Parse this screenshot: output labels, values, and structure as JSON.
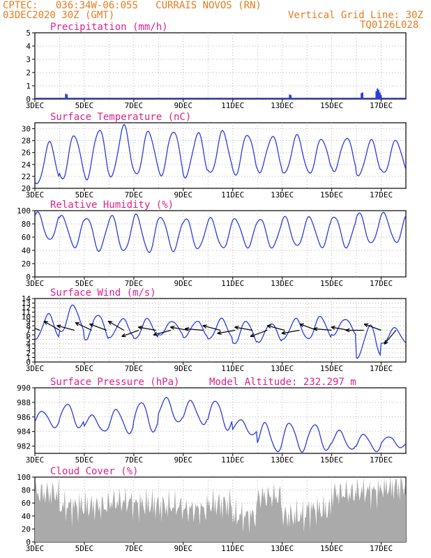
{
  "header": {
    "line1": "CPTEC:   036:34W-06:05S   CURRAIS NOVOS (RN)",
    "line2": "03DEC2020 30Z (GMT)",
    "right1": "Vertical Grid Line: 30Z",
    "right2": "TQ0126L028"
  },
  "colors": {
    "header": "#e87a1e",
    "title": "#e0208a",
    "series": "#2a3be0",
    "cloud": "#aaaaaa",
    "grid": "#999999",
    "arrow": "#000000"
  },
  "x_ticks": [
    "3DEC",
    "5DEC",
    "7DEC",
    "9DEC",
    "11DEC",
    "13DEC",
    "15DEC",
    "17DEC"
  ],
  "chart_data": [
    {
      "type": "bar",
      "title": "Precipitation (mm/h)",
      "ylim": [
        0,
        5
      ],
      "yticks": [
        0,
        1,
        2,
        3,
        4,
        5
      ],
      "x_range_days": [
        3,
        18
      ],
      "bars": [
        {
          "x": 4.25,
          "v": 0.4
        },
        {
          "x": 4.3,
          "v": 0.35
        },
        {
          "x": 13.3,
          "v": 0.35
        },
        {
          "x": 13.35,
          "v": 0.3
        },
        {
          "x": 16.2,
          "v": 0.45
        },
        {
          "x": 16.25,
          "v": 0.5
        },
        {
          "x": 16.8,
          "v": 0.6
        },
        {
          "x": 16.85,
          "v": 0.8
        },
        {
          "x": 16.9,
          "v": 0.7
        },
        {
          "x": 16.95,
          "v": 0.5
        },
        {
          "x": 17.0,
          "v": 0.3
        }
      ]
    },
    {
      "type": "line",
      "title": "Surface Temperature (nC)",
      "ylim": [
        20,
        31
      ],
      "yticks": [
        20,
        22,
        24,
        26,
        28,
        30
      ],
      "x_range_days": [
        3,
        18
      ],
      "daily_max": [
        27.6,
        28.9,
        29.9,
        30.4,
        29.5,
        29.7,
        29.2,
        29.5,
        29.1,
        28.7,
        28.8,
        28.3,
        28.5,
        28.0,
        28.0
      ],
      "daily_min": [
        20.6,
        21.5,
        21.7,
        21.9,
        22.2,
        22.3,
        21.9,
        22.4,
        22.3,
        22.8,
        22.4,
        22.5,
        23.0,
        22.1,
        22.5
      ]
    },
    {
      "type": "line",
      "title": "Relative Humidity (%)",
      "ylim": [
        0,
        100
      ],
      "yticks": [
        0,
        20,
        40,
        60,
        80,
        100
      ],
      "x_range_days": [
        3,
        18
      ],
      "daily_max": [
        97,
        92,
        90,
        92,
        93,
        91,
        88,
        88,
        88,
        88,
        90,
        90,
        92,
        96,
        96
      ],
      "daily_min": [
        55,
        45,
        40,
        38,
        37,
        40,
        42,
        43,
        45,
        44,
        46,
        45,
        45,
        50,
        52
      ]
    },
    {
      "type": "line",
      "title": "Surface Wind (m/s)",
      "ylim": [
        0,
        14
      ],
      "yticks": [
        0,
        1,
        2,
        3,
        4,
        5,
        6,
        7,
        8,
        9,
        10,
        11,
        12,
        13,
        14
      ],
      "x_range_days": [
        3,
        18
      ],
      "daily_max": [
        10.5,
        12.5,
        10.5,
        9.5,
        9.5,
        9.0,
        9.0,
        9.5,
        9.0,
        8.5,
        9.5,
        10.0,
        9.5,
        8.0,
        7.5
      ],
      "daily_min": [
        5.0,
        6.5,
        5.0,
        5.5,
        5.0,
        6.0,
        5.5,
        5.0,
        4.0,
        4.5,
        5.0,
        5.0,
        6.0,
        1.0,
        4.0
      ],
      "arrows_day": [
        3.2,
        4.0,
        4.6,
        5.3,
        5.9,
        6.6,
        7.2,
        7.9,
        8.5,
        9.2,
        9.8,
        10.5,
        11.1,
        11.8,
        12.4,
        13.1,
        13.7,
        14.4,
        15.0,
        15.7,
        16.3,
        17.0,
        17.6
      ],
      "arrows_dir_deg": [
        160,
        150,
        165,
        155,
        160,
        150,
        200,
        170,
        195,
        170,
        175,
        165,
        190,
        170,
        200,
        165,
        190,
        160,
        175,
        170,
        180,
        160,
        230
      ]
    },
    {
      "type": "line",
      "title": "Surface Pressure (hPa)",
      "annotation": "Model Altitude: 232.297 m",
      "ylim": [
        981,
        990
      ],
      "yticks": [
        982,
        984,
        986,
        988,
        990
      ],
      "x_range_days": [
        3,
        18
      ],
      "daily_max": [
        986.8,
        987.8,
        986.2,
        987.0,
        988.1,
        988.6,
        988.2,
        988.3,
        985.6,
        985.1,
        985.2,
        985.0,
        984.1,
        983.6,
        983.3
      ],
      "daily_min": [
        984.6,
        984.5,
        984.0,
        983.8,
        984.0,
        985.2,
        985.0,
        984.3,
        983.5,
        981.2,
        981.3,
        981.4,
        981.5,
        981.3,
        981.8
      ]
    },
    {
      "type": "area",
      "title": "Cloud Cover (%)",
      "ylim": [
        0,
        100
      ],
      "yticks": [
        0,
        20,
        40,
        60,
        80,
        100
      ],
      "x_range_days": [
        3,
        18
      ],
      "daily_mean": [
        75,
        55,
        55,
        62,
        58,
        55,
        50,
        58,
        40,
        70,
        40,
        50,
        75,
        78,
        85
      ]
    }
  ]
}
